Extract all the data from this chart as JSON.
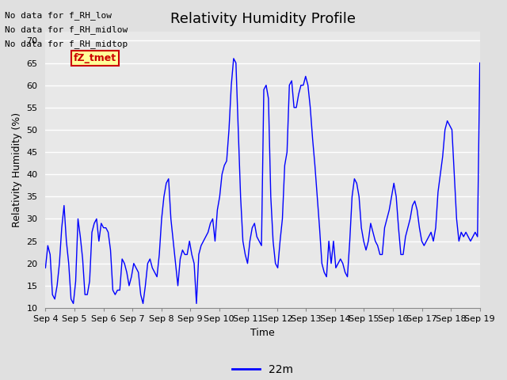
{
  "title": "Relativity Humidity Profile",
  "xlabel": "Time",
  "ylabel": "Relativity Humidity (%)",
  "legend_label": "22m",
  "line_color": "blue",
  "ylim": [
    10,
    72
  ],
  "yticks": [
    10,
    15,
    20,
    25,
    30,
    35,
    40,
    45,
    50,
    55,
    60,
    65,
    70
  ],
  "xtick_labels": [
    "Sep 4",
    "Sep 5",
    "Sep 6",
    "Sep 7",
    "Sep 8",
    "Sep 9",
    "Sep 10",
    "Sep 11",
    "Sep 12",
    "Sep 13",
    "Sep 14",
    "Sep 15",
    "Sep 16",
    "Sep 17",
    "Sep 18",
    "Sep 19"
  ],
  "no_data_texts": [
    "No data for f_RH_low",
    "No data for f̲RH̲midlow",
    "No data for f̲RH̲midtop"
  ],
  "no_data_texts_plain": [
    "No data for f_RH_low",
    "No data for f_RH_midlow",
    "No data for f_RH_midtop"
  ],
  "fz_tmet_label": "fZ_tmet",
  "legend_box_color": "#FFFF99",
  "legend_box_border": "#CC0000",
  "legend_text_color": "#CC0000",
  "bg_color": "#E0E0E0",
  "plot_bg_color": "#E8E8E8",
  "grid_color": "white",
  "title_fontsize": 13,
  "axis_fontsize": 9,
  "tick_fontsize": 8,
  "nodata_fontsize": 8,
  "y_values": [
    19,
    24,
    22,
    13,
    12,
    15,
    20,
    28,
    33,
    25,
    20,
    12,
    11,
    16,
    30,
    26,
    21,
    13,
    13,
    16,
    27,
    29,
    30,
    25,
    29,
    28,
    28,
    27,
    23,
    14,
    13,
    14,
    14,
    21,
    20,
    18,
    15,
    17,
    20,
    19,
    18,
    13,
    11,
    15,
    20,
    21,
    19,
    18,
    17,
    22,
    30,
    35,
    38,
    39,
    30,
    25,
    20,
    15,
    21,
    23,
    22,
    22,
    25,
    22,
    20,
    11,
    22,
    24,
    25,
    26,
    27,
    29,
    30,
    25,
    32,
    35,
    40,
    42,
    43,
    50,
    60,
    66,
    65,
    50,
    35,
    25,
    22,
    20,
    25,
    28,
    29,
    26,
    25,
    24,
    59,
    60,
    57,
    35,
    25,
    20,
    19,
    25,
    30,
    42,
    45,
    60,
    61,
    55,
    55,
    58,
    60,
    60,
    62,
    60,
    55,
    48,
    42,
    35,
    28,
    20,
    18,
    17,
    25,
    20,
    25,
    19,
    20,
    21,
    20,
    18,
    17,
    25,
    35,
    39,
    38,
    35,
    28,
    25,
    23,
    25,
    29,
    27,
    25,
    24,
    22,
    22,
    28,
    30,
    32,
    35,
    38,
    35,
    28,
    22,
    22,
    26,
    28,
    30,
    33,
    34,
    32,
    28,
    25,
    24,
    25,
    26,
    27,
    25,
    28,
    36,
    40,
    44,
    50,
    52,
    51,
    50,
    40,
    30,
    25,
    27,
    26,
    27,
    26,
    25,
    26,
    27,
    26,
    65
  ]
}
